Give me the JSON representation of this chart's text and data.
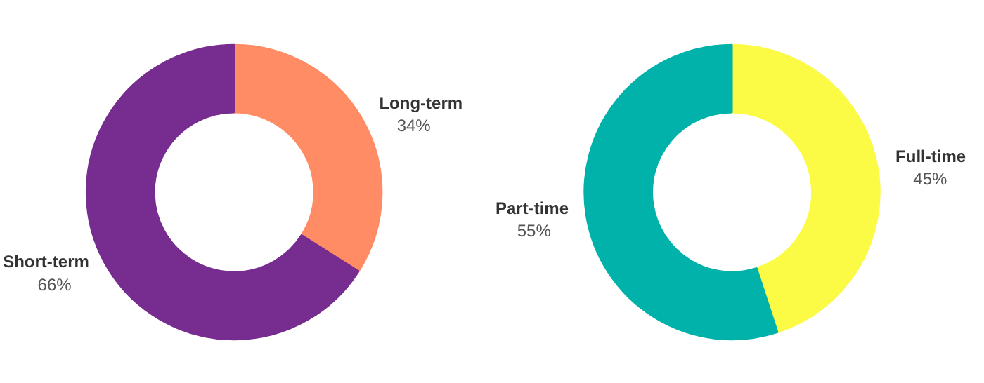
{
  "chart_data": [
    {
      "type": "donut",
      "categories": [
        "Long-term",
        "Short-term"
      ],
      "values": [
        34,
        66
      ],
      "colors": [
        "#ff8c64",
        "#772d8f"
      ],
      "value_labels": [
        "34%",
        "66%"
      ]
    },
    {
      "type": "donut",
      "categories": [
        "Full-time",
        "Part-time"
      ],
      "values": [
        45,
        55
      ],
      "colors": [
        "#fbfb45",
        "#00b2a9"
      ],
      "value_labels": [
        "45%",
        "55%"
      ]
    }
  ]
}
